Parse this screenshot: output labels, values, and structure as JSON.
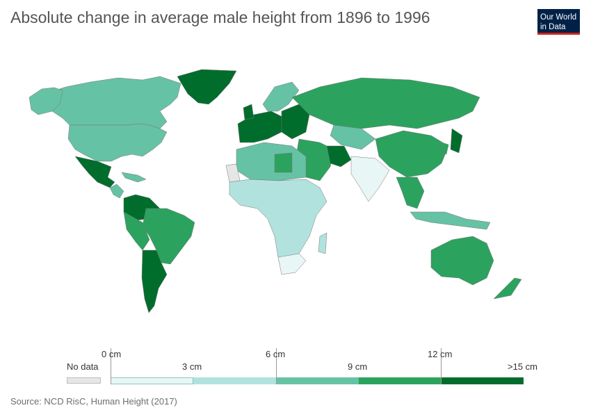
{
  "title": "Absolute change in average male height from 1896 to 1996",
  "logo": {
    "line1": "Our World",
    "line2": "in Data"
  },
  "colors": {
    "no_data": "#e6e6e6",
    "bin_0_3": "#e8f6f5",
    "bin_3_6": "#b2e2dd",
    "bin_6_9": "#66c2a4",
    "bin_9_12": "#2ca25f",
    "bin_12_15": "#006d2c",
    "border": "#777777"
  },
  "legend": {
    "no_data_label": "No data",
    "tick_labels": [
      "0 cm",
      "3 cm",
      "6 cm",
      "9 cm",
      "12 cm",
      ">15 cm"
    ]
  },
  "source": "Source: NCD RisC, Human Height (2017)"
}
